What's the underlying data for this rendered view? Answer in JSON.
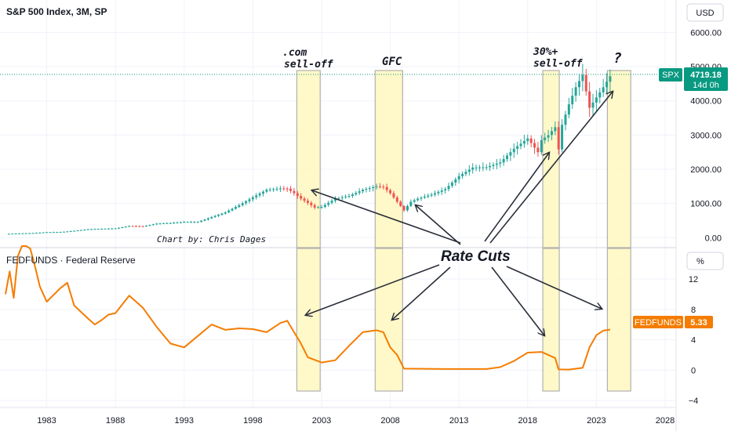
{
  "chart_data": [
    {
      "type": "candlestick",
      "title": "S&P 500 Index, 3M, SP",
      "symbol": "SPX",
      "last_value": "4719.18",
      "countdown": "14d 0h",
      "currency_button": "USD",
      "credit": "Chart by: Chris Dages",
      "y_ticks": [
        "6000.00",
        "5000.00",
        "4000.00",
        "3000.00",
        "2000.00",
        "1000.00",
        "0.00"
      ],
      "ylim": [
        -200,
        6400
      ],
      "series": [
        {
          "x": [
            1980.0,
            1981.0,
            1982.0,
            1983.0,
            1984.0,
            1985.0,
            1986.0,
            1987.0,
            1988.0,
            1989.0,
            1990.0,
            1991.0,
            1992.0,
            1993.0,
            1994.0,
            1995.0,
            1996.0,
            1997.0,
            1998.0,
            1999.0,
            2000.0,
            2000.5,
            2001.0,
            2001.5,
            2002.0,
            2002.5,
            2003.0,
            2004.0,
            2005.0,
            2006.0,
            2007.0,
            2007.5,
            2008.0,
            2008.5,
            2009.0,
            2009.5,
            2010.0,
            2011.0,
            2012.0,
            2013.0,
            2014.0,
            2015.0,
            2016.0,
            2017.0,
            2018.0,
            2018.75,
            2019.0,
            2019.5,
            2020.0,
            2020.25,
            2020.5,
            2021.0,
            2021.5,
            2022.0,
            2022.5,
            2023.0,
            2023.5,
            2024.0
          ],
          "y": [
            110,
            125,
            135,
            160,
            165,
            200,
            245,
            260,
            270,
            340,
            330,
            410,
            430,
            460,
            460,
            600,
            740,
            950,
            1180,
            1400,
            1440,
            1430,
            1300,
            1140,
            1020,
            880,
            900,
            1140,
            1220,
            1400,
            1500,
            1480,
            1300,
            1050,
            800,
            1050,
            1140,
            1260,
            1420,
            1800,
            2050,
            2060,
            2200,
            2600,
            2900,
            2500,
            2850,
            3000,
            3230,
            2580,
            3300,
            3900,
            4400,
            4760,
            3800,
            4100,
            4400,
            4719
          ]
        }
      ]
    },
    {
      "type": "line",
      "title": "FEDFUNDS · Federal Reserve",
      "last_label": "FEDFUNDS",
      "last_value": "5.33",
      "unit_button": "%",
      "y_ticks": [
        "12",
        "8",
        "4",
        "0",
        "−4"
      ],
      "ylim": [
        -4.5,
        15.5
      ],
      "series": [
        {
          "x": [
            1980.0,
            1980.3,
            1980.6,
            1980.9,
            1981.2,
            1981.5,
            1981.8,
            1982.1,
            1982.5,
            1983.0,
            1984.0,
            1984.5,
            1985.0,
            1986.0,
            1986.5,
            1987.0,
            1987.5,
            1988.0,
            1989.0,
            1989.5,
            1990.0,
            1991.0,
            1992.0,
            1993.0,
            1994.0,
            1995.0,
            1996.0,
            1997.0,
            1998.0,
            1999.0,
            2000.0,
            2000.5,
            2001.0,
            2001.5,
            2002.0,
            2003.0,
            2004.0,
            2005.0,
            2006.0,
            2007.0,
            2007.5,
            2008.0,
            2008.5,
            2009.0,
            2012.0,
            2015.0,
            2016.0,
            2017.0,
            2018.0,
            2019.0,
            2019.5,
            2020.0,
            2020.25,
            2021.0,
            2022.0,
            2022.5,
            2023.0,
            2023.5,
            2024.0
          ],
          "y": [
            10.0,
            13.0,
            9.5,
            15.0,
            16.5,
            19.0,
            16.0,
            14.0,
            11.0,
            9.0,
            10.8,
            11.5,
            8.5,
            6.8,
            6.0,
            6.6,
            7.3,
            7.5,
            9.8,
            9.0,
            8.2,
            5.7,
            3.5,
            3.0,
            4.5,
            6.0,
            5.3,
            5.5,
            5.4,
            5.0,
            6.2,
            6.5,
            5.0,
            3.5,
            1.7,
            1.0,
            1.3,
            3.2,
            5.0,
            5.25,
            5.0,
            3.0,
            2.0,
            0.2,
            0.15,
            0.15,
            0.4,
            1.2,
            2.3,
            2.4,
            2.0,
            1.6,
            0.1,
            0.08,
            0.3,
            3.0,
            4.6,
            5.2,
            5.33
          ]
        }
      ]
    }
  ],
  "time_axis": {
    "ticks": [
      "1983",
      "1988",
      "1993",
      "1998",
      "2003",
      "2008",
      "2013",
      "2018",
      "2023",
      "2028"
    ],
    "x_range": [
      1979.6,
      2028.8
    ]
  },
  "annotations": {
    "dotcom_line1": ".com",
    "dotcom_line2": "sell-off",
    "gfc": "GFC",
    "covid_line1": "30%+",
    "covid_line2": "sell-off",
    "question": "?",
    "rate_cuts": "Rate Cuts"
  },
  "highlight_periods": [
    [
      2001.2,
      2002.9
    ],
    [
      2006.9,
      2008.9
    ],
    [
      2019.1,
      2020.3
    ],
    [
      2023.8,
      2025.5
    ]
  ],
  "colors": {
    "up": "#26a69a",
    "down": "#ef5350",
    "fedfunds": "#f57c00",
    "band_fill": "#fff7c2",
    "band_stroke": "#b0b0b0",
    "spx_label": "#089981"
  }
}
